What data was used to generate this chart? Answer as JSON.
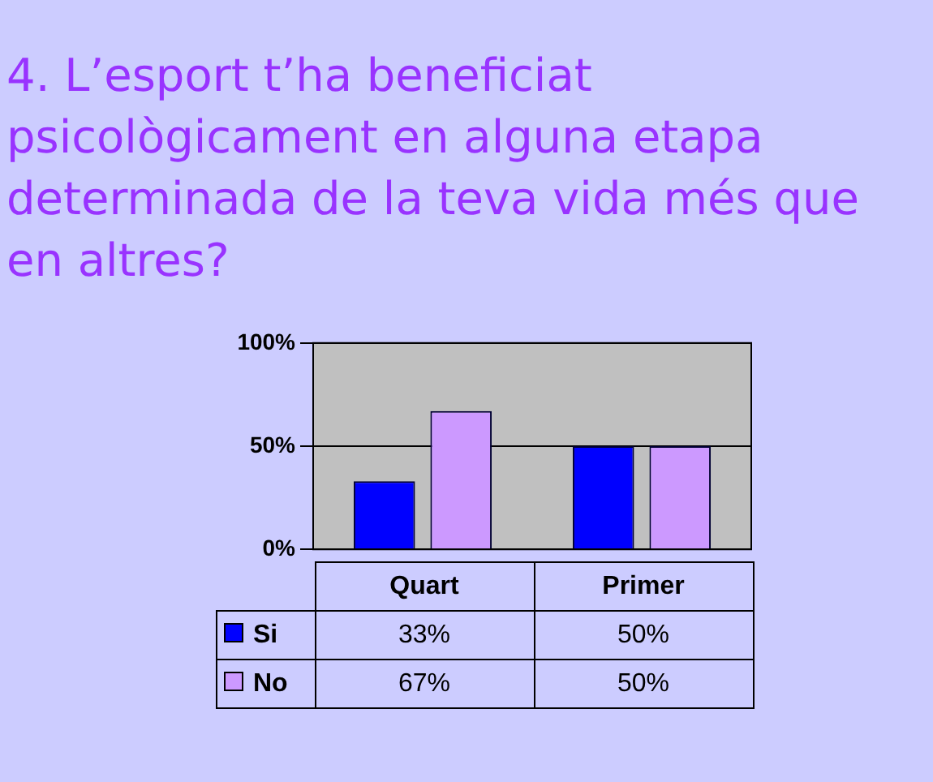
{
  "chart_data": {
    "type": "bar",
    "title": "4. L’esport t’ha beneficiat psicològicament en alguna etapa determinada de la teva vida més que en altres?",
    "categories": [
      "Quart",
      "Primer"
    ],
    "series": [
      {
        "name": "Si",
        "color": "#0000ff",
        "values": [
          33,
          50
        ],
        "value_labels": [
          "33%",
          "50%"
        ]
      },
      {
        "name": "No",
        "color": "#cc99ff",
        "values": [
          67,
          50
        ],
        "value_labels": [
          "67%",
          "50%"
        ]
      }
    ],
    "ylim": [
      0,
      100
    ],
    "yticks": [
      {
        "value": 0,
        "label": "0%"
      },
      {
        "value": 50,
        "label": "50%"
      },
      {
        "value": 100,
        "label": "100%"
      }
    ],
    "grid": "y",
    "legend": "bottom"
  }
}
